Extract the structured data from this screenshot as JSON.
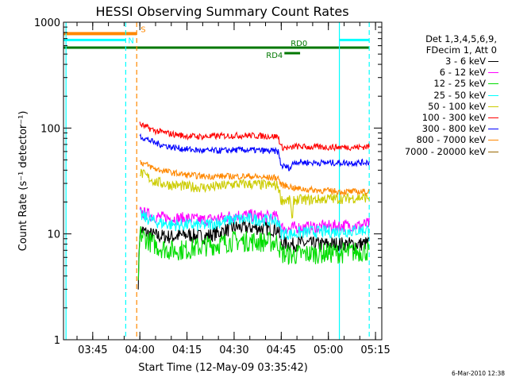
{
  "chart_data": {
    "type": "line",
    "title": "HESSI Observing Summary Count Rates",
    "xlabel": "Start Time (12-May-09 03:35:42)",
    "ylabel": "Count Rate (s⁻¹ detector⁻¹)",
    "yscale": "log",
    "ylim": [
      1,
      1000
    ],
    "y_ticks": [
      {
        "value": 1,
        "label": "1"
      },
      {
        "value": 10,
        "label": "10"
      },
      {
        "value": 100,
        "label": "100"
      },
      {
        "value": 1000,
        "label": "1000"
      }
    ],
    "xlim": [
      "03:35:42",
      "05:17:00"
    ],
    "x_ticks": [
      "03:45",
      "04:00",
      "04:15",
      "04:30",
      "04:45",
      "05:00",
      "05:15"
    ],
    "legend_header": [
      "Det 1,3,4,5,6,9,",
      "FDecim 1, Att 0"
    ],
    "legend_position": "right",
    "series": [
      {
        "name": "3 - 6 keV",
        "color": "#000000",
        "start": "03:59:30",
        "end": "05:13:30",
        "values": [
          [
            "03:59:30",
            3.5
          ],
          [
            "04:00",
            11
          ],
          [
            "04:03",
            10
          ],
          [
            "04:06",
            9.5
          ],
          [
            "04:10",
            9.4
          ],
          [
            "04:15",
            9.8
          ],
          [
            "04:20",
            9.4
          ],
          [
            "04:25",
            10.2
          ],
          [
            "04:30",
            11.5
          ],
          [
            "04:35",
            11.5
          ],
          [
            "04:40",
            11.3
          ],
          [
            "04:44",
            11
          ],
          [
            "04:45",
            8.2
          ],
          [
            "04:48",
            8.0
          ],
          [
            "04:49",
            7.8
          ],
          [
            "04:50",
            8.2
          ],
          [
            "04:55",
            8.0
          ],
          [
            "05:00",
            8.0
          ],
          [
            "05:05",
            8.0
          ],
          [
            "05:10",
            8.0
          ],
          [
            "05:13",
            8.2
          ]
        ]
      },
      {
        "name": "6 - 12 keV",
        "color": "#ff00ff",
        "start": "04:00:00",
        "end": "05:13:30",
        "values": [
          [
            "04:00",
            16
          ],
          [
            "04:05",
            14.5
          ],
          [
            "04:10",
            14
          ],
          [
            "04:15",
            14
          ],
          [
            "04:20",
            13.5
          ],
          [
            "04:25",
            14
          ],
          [
            "04:30",
            15
          ],
          [
            "04:35",
            15
          ],
          [
            "04:40",
            14.5
          ],
          [
            "04:44",
            14.5
          ],
          [
            "04:45",
            11.5
          ],
          [
            "04:48",
            11
          ],
          [
            "04:49",
            11.5
          ],
          [
            "04:55",
            11.5
          ],
          [
            "05:00",
            11.8
          ],
          [
            "05:05",
            12
          ],
          [
            "05:10",
            12
          ],
          [
            "05:13",
            12.5
          ]
        ]
      },
      {
        "name": "12 - 25 keV",
        "color": "#00dd00",
        "start": "03:59:30",
        "end": "05:13:30",
        "values": [
          [
            "03:59:30",
            3.0
          ],
          [
            "04:00",
            10
          ],
          [
            "04:03",
            8.5
          ],
          [
            "04:06",
            7.5
          ],
          [
            "04:10",
            7.0
          ],
          [
            "04:15",
            7.1
          ],
          [
            "04:20",
            7.6
          ],
          [
            "04:25",
            8.0
          ],
          [
            "04:30",
            8.6
          ],
          [
            "04:35",
            8.5
          ],
          [
            "04:40",
            8.4
          ],
          [
            "04:44",
            8.3
          ],
          [
            "04:45",
            6.5
          ],
          [
            "04:48",
            6.3
          ],
          [
            "04:55",
            6.5
          ],
          [
            "05:00",
            6.6
          ],
          [
            "05:05",
            6.6
          ],
          [
            "05:10",
            6.8
          ],
          [
            "05:13",
            6.9
          ]
        ]
      },
      {
        "name": "25 - 50 keV",
        "color": "#00ffff",
        "start": "04:00:00",
        "end": "05:13:30",
        "values": [
          [
            "04:00",
            15
          ],
          [
            "04:05",
            13
          ],
          [
            "04:10",
            12.2
          ],
          [
            "04:15",
            12.2
          ],
          [
            "04:20",
            12
          ],
          [
            "04:25",
            12.8
          ],
          [
            "04:30",
            13.8
          ],
          [
            "04:35",
            13.8
          ],
          [
            "04:40",
            13.5
          ],
          [
            "04:44",
            13.2
          ],
          [
            "04:45",
            10.2
          ],
          [
            "04:48",
            10
          ],
          [
            "04:55",
            10.5
          ],
          [
            "05:00",
            10.5
          ],
          [
            "05:05",
            10.6
          ],
          [
            "05:10",
            10.8
          ],
          [
            "05:13",
            11
          ]
        ]
      },
      {
        "name": "50 - 100 keV",
        "color": "#cccc00",
        "start": "04:00:00",
        "end": "05:13:30",
        "values": [
          [
            "04:00",
            38
          ],
          [
            "04:05",
            31
          ],
          [
            "04:10",
            29
          ],
          [
            "04:15",
            28
          ],
          [
            "04:20",
            27.5
          ],
          [
            "04:25",
            28
          ],
          [
            "04:30",
            29.5
          ],
          [
            "04:35",
            29.5
          ],
          [
            "04:40",
            29
          ],
          [
            "04:44",
            28.5
          ],
          [
            "04:45",
            21
          ],
          [
            "04:48",
            20.5
          ],
          [
            "04:48:30",
            12
          ],
          [
            "04:49",
            21
          ],
          [
            "04:55",
            21
          ],
          [
            "05:00",
            21.5
          ],
          [
            "05:05",
            21.5
          ],
          [
            "05:10",
            22
          ],
          [
            "05:13",
            22
          ]
        ]
      },
      {
        "name": "100 - 300 keV",
        "color": "#ff0000",
        "start": "04:00:00",
        "end": "05:13:30",
        "values": [
          [
            "04:00",
            108
          ],
          [
            "04:05",
            94
          ],
          [
            "04:10",
            88
          ],
          [
            "04:15",
            84
          ],
          [
            "04:20",
            83
          ],
          [
            "04:25",
            84
          ],
          [
            "04:30",
            85
          ],
          [
            "04:35",
            85
          ],
          [
            "04:40",
            84
          ],
          [
            "04:44",
            83
          ],
          [
            "04:45",
            66
          ],
          [
            "04:48",
            64
          ],
          [
            "04:49",
            67
          ],
          [
            "04:55",
            66
          ],
          [
            "05:00",
            66
          ],
          [
            "05:05",
            66
          ],
          [
            "05:10",
            66
          ],
          [
            "05:13",
            67
          ]
        ]
      },
      {
        "name": "300 - 800 keV",
        "color": "#0000ff",
        "start": "04:00:00",
        "end": "05:13:30",
        "values": [
          [
            "04:00",
            84
          ],
          [
            "04:05",
            72
          ],
          [
            "04:10",
            66
          ],
          [
            "04:15",
            63
          ],
          [
            "04:20",
            61
          ],
          [
            "04:25",
            61
          ],
          [
            "04:30",
            62
          ],
          [
            "04:35",
            62
          ],
          [
            "04:40",
            61
          ],
          [
            "04:44",
            60
          ],
          [
            "04:45",
            44
          ],
          [
            "04:48",
            42
          ],
          [
            "04:49",
            48
          ],
          [
            "04:55",
            47
          ],
          [
            "05:00",
            47
          ],
          [
            "05:05",
            47
          ],
          [
            "05:10",
            47
          ],
          [
            "05:13",
            48
          ]
        ]
      },
      {
        "name": "800 - 7000 keV",
        "color": "#ff8800",
        "start": "04:00:00",
        "end": "05:13:30",
        "values": [
          [
            "04:00",
            48
          ],
          [
            "04:05",
            41
          ],
          [
            "04:10",
            38
          ],
          [
            "04:15",
            36
          ],
          [
            "04:20",
            35
          ],
          [
            "04:25",
            35
          ],
          [
            "04:30",
            35
          ],
          [
            "04:35",
            35
          ],
          [
            "04:40",
            34
          ],
          [
            "04:44",
            34
          ],
          [
            "04:45",
            29
          ],
          [
            "04:48",
            28
          ],
          [
            "04:49",
            27
          ],
          [
            "04:55",
            26
          ],
          [
            "05:00",
            25.5
          ],
          [
            "05:05",
            25
          ],
          [
            "05:10",
            25
          ],
          [
            "05:13",
            25
          ]
        ]
      },
      {
        "name": "7000 - 20000 keV",
        "color": "#996600",
        "start": "04:00:00",
        "end": "05:13:30",
        "values": []
      }
    ],
    "flags": {
      "S": {
        "label": "S",
        "color": "#ff8800",
        "start": "03:35:42",
        "end": "03:59:00",
        "level": 780
      },
      "N": {
        "label": "N",
        "color": "#00ffff",
        "start": "03:35:42",
        "end": "03:55:30",
        "level": 680,
        "resume": "05:03:30",
        "resume_end": "05:13:00"
      },
      "RD0": {
        "label": "RD0",
        "color": "#007700",
        "start": "03:35:42",
        "end": "05:13:00",
        "level": 575
      },
      "RD4": {
        "label": "RD4",
        "color": "#007700",
        "start": "04:46:00",
        "end": "04:51:00",
        "level": 510
      }
    },
    "vertical_markers": [
      {
        "time": "03:36:30",
        "color": "#00ffff",
        "style": "solid"
      },
      {
        "time": "03:55:30",
        "color": "#00ffff",
        "style": "dashed"
      },
      {
        "time": "03:59:00",
        "color": "#ff8800",
        "style": "dashed"
      },
      {
        "time": "05:03:30",
        "color": "#00ffff",
        "style": "solid"
      },
      {
        "time": "05:13:00",
        "color": "#00ffff",
        "style": "dashed"
      }
    ],
    "footer_timestamp": "6-Mar-2010 12:38"
  }
}
